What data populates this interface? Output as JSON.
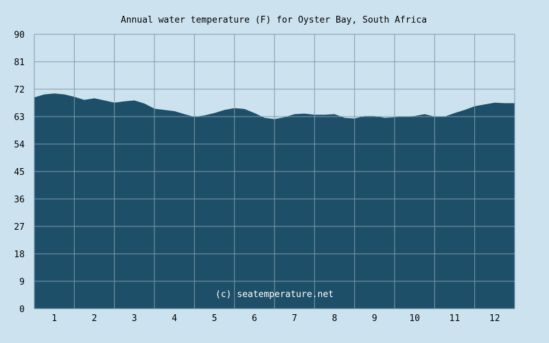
{
  "chart_data": {
    "type": "area",
    "title": "Annual water temperature (F) for Oyster Bay, South Africa",
    "xlabel": "",
    "ylabel": "",
    "x_ticks": [
      "1",
      "2",
      "3",
      "4",
      "5",
      "6",
      "7",
      "8",
      "9",
      "10",
      "11",
      "12"
    ],
    "y_ticks": [
      "0",
      "9",
      "18",
      "27",
      "36",
      "45",
      "54",
      "63",
      "72",
      "81",
      "90"
    ],
    "ylim": [
      0,
      90
    ],
    "xlim": [
      0.5,
      12.5
    ],
    "grid": true,
    "legend": "none",
    "watermark": "(c) seatemperature.net",
    "series": [
      {
        "x": [
          0.5,
          0.75,
          1.0,
          1.25,
          1.5,
          1.75,
          2.0,
          2.25,
          2.5,
          2.75,
          3.0,
          3.25,
          3.5,
          3.75,
          4.0,
          4.25,
          4.5,
          4.75,
          5.0,
          5.25,
          5.5,
          5.75,
          6.0,
          6.25,
          6.5,
          6.75,
          7.0,
          7.25,
          7.5,
          7.75,
          8.0,
          8.25,
          8.5,
          8.75,
          9.0,
          9.25,
          9.5,
          9.75,
          10.0,
          10.25,
          10.5,
          10.75,
          11.0,
          11.25,
          11.5,
          11.75,
          12.0,
          12.25,
          12.5
        ],
        "values": [
          69.3,
          70.3,
          70.6,
          70.3,
          69.5,
          68.5,
          69.0,
          68.3,
          67.6,
          68.0,
          68.3,
          67.3,
          65.6,
          65.2,
          64.8,
          63.8,
          62.9,
          63.4,
          64.2,
          65.2,
          65.8,
          65.5,
          64.2,
          62.6,
          62.2,
          62.8,
          63.8,
          64.0,
          63.6,
          63.6,
          63.8,
          62.6,
          62.4,
          63.2,
          63.2,
          62.6,
          62.8,
          63.0,
          63.2,
          63.8,
          63.0,
          63.0,
          64.2,
          65.2,
          66.4,
          67.0,
          67.6,
          67.4,
          67.4
        ]
      }
    ],
    "colors": {
      "area": "#1e4f68",
      "background": "#cce3ef",
      "grid": "#7e9aab"
    }
  }
}
